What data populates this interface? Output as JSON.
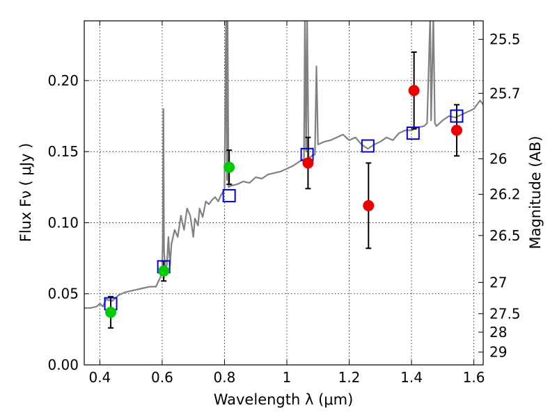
{
  "chart_data": {
    "type": "scatter",
    "xlabel": "Wavelength  λ (μm)",
    "ylabel": "Flux  Fν  ( μJy )",
    "ylabel_right": "Magnitude (AB)",
    "xlim": [
      0.35,
      1.63
    ],
    "ylim": [
      0.0,
      0.242
    ],
    "grid": true,
    "x_ticks": [
      0.4,
      0.6,
      0.8,
      1.0,
      1.2,
      1.4,
      1.6
    ],
    "x_tick_labels": [
      "0.4",
      "0.6",
      "0.8",
      "1",
      "1.2",
      "1.4",
      "1.6"
    ],
    "y_ticks": [
      0.0,
      0.05,
      0.1,
      0.15,
      0.2
    ],
    "y_tick_labels": [
      "0.00",
      "0.05",
      "0.10",
      "0.15",
      "0.20"
    ],
    "right_ticks": [
      {
        "label": "25.5",
        "flux": 0.229
      },
      {
        "label": "25.7",
        "flux": 0.191
      },
      {
        "label": "26",
        "flux": 0.145
      },
      {
        "label": "26.2",
        "flux": 0.12
      },
      {
        "label": "26.5",
        "flux": 0.091
      },
      {
        "label": "27",
        "flux": 0.058
      },
      {
        "label": "27.5",
        "flux": 0.036
      },
      {
        "label": "28",
        "flux": 0.023
      },
      {
        "label": "29",
        "flux": 0.009
      }
    ],
    "colors": {
      "spectrum": "#808080",
      "model_box": "#0000dd",
      "green": "#00cc00",
      "red": "#ee0000",
      "errorbar": "#000000"
    },
    "spectrum": [
      [
        0.35,
        0.04
      ],
      [
        0.37,
        0.04
      ],
      [
        0.39,
        0.041
      ],
      [
        0.4,
        0.043
      ],
      [
        0.41,
        0.041
      ],
      [
        0.42,
        0.046
      ],
      [
        0.44,
        0.045
      ],
      [
        0.46,
        0.049
      ],
      [
        0.48,
        0.051
      ],
      [
        0.5,
        0.052
      ],
      [
        0.52,
        0.053
      ],
      [
        0.54,
        0.054
      ],
      [
        0.56,
        0.055
      ],
      [
        0.58,
        0.055
      ],
      [
        0.595,
        0.062
      ],
      [
        0.6,
        0.068
      ],
      [
        0.602,
        0.09
      ],
      [
        0.604,
        0.18
      ],
      [
        0.606,
        0.08
      ],
      [
        0.61,
        0.068
      ],
      [
        0.615,
        0.07
      ],
      [
        0.62,
        0.09
      ],
      [
        0.625,
        0.07
      ],
      [
        0.63,
        0.085
      ],
      [
        0.64,
        0.095
      ],
      [
        0.65,
        0.09
      ],
      [
        0.66,
        0.105
      ],
      [
        0.67,
        0.095
      ],
      [
        0.68,
        0.11
      ],
      [
        0.69,
        0.105
      ],
      [
        0.7,
        0.09
      ],
      [
        0.705,
        0.103
      ],
      [
        0.715,
        0.098
      ],
      [
        0.72,
        0.11
      ],
      [
        0.73,
        0.104
      ],
      [
        0.74,
        0.115
      ],
      [
        0.75,
        0.113
      ],
      [
        0.76,
        0.116
      ],
      [
        0.77,
        0.118
      ],
      [
        0.78,
        0.115
      ],
      [
        0.79,
        0.12
      ],
      [
        0.8,
        0.123
      ],
      [
        0.805,
        0.245
      ],
      [
        0.808,
        0.13
      ],
      [
        0.81,
        0.245
      ],
      [
        0.813,
        0.125
      ],
      [
        0.82,
        0.126
      ],
      [
        0.84,
        0.127
      ],
      [
        0.86,
        0.129
      ],
      [
        0.88,
        0.128
      ],
      [
        0.9,
        0.132
      ],
      [
        0.92,
        0.131
      ],
      [
        0.94,
        0.134
      ],
      [
        0.96,
        0.135
      ],
      [
        0.98,
        0.136
      ],
      [
        1.0,
        0.138
      ],
      [
        1.02,
        0.14
      ],
      [
        1.04,
        0.143
      ],
      [
        1.055,
        0.145
      ],
      [
        1.058,
        0.245
      ],
      [
        1.062,
        0.15
      ],
      [
        1.065,
        0.245
      ],
      [
        1.07,
        0.145
      ],
      [
        1.08,
        0.147
      ],
      [
        1.09,
        0.148
      ],
      [
        1.095,
        0.21
      ],
      [
        1.1,
        0.155
      ],
      [
        1.12,
        0.157
      ],
      [
        1.14,
        0.158
      ],
      [
        1.16,
        0.16
      ],
      [
        1.18,
        0.162
      ],
      [
        1.2,
        0.158
      ],
      [
        1.22,
        0.16
      ],
      [
        1.24,
        0.155
      ],
      [
        1.26,
        0.152
      ],
      [
        1.28,
        0.155
      ],
      [
        1.3,
        0.157
      ],
      [
        1.32,
        0.16
      ],
      [
        1.34,
        0.158
      ],
      [
        1.36,
        0.163
      ],
      [
        1.38,
        0.165
      ],
      [
        1.4,
        0.165
      ],
      [
        1.42,
        0.167
      ],
      [
        1.44,
        0.168
      ],
      [
        1.45,
        0.17
      ],
      [
        1.46,
        0.245
      ],
      [
        1.463,
        0.172
      ],
      [
        1.47,
        0.245
      ],
      [
        1.475,
        0.17
      ],
      [
        1.48,
        0.168
      ],
      [
        1.5,
        0.172
      ],
      [
        1.52,
        0.175
      ],
      [
        1.54,
        0.174
      ],
      [
        1.56,
        0.176
      ],
      [
        1.58,
        0.178
      ],
      [
        1.6,
        0.18
      ],
      [
        1.62,
        0.186
      ],
      [
        1.63,
        0.183
      ]
    ],
    "model_points": [
      {
        "x": 0.435,
        "y": 0.043
      },
      {
        "x": 0.605,
        "y": 0.069
      },
      {
        "x": 0.815,
        "y": 0.119
      },
      {
        "x": 1.065,
        "y": 0.148
      },
      {
        "x": 1.26,
        "y": 0.154
      },
      {
        "x": 1.405,
        "y": 0.163
      },
      {
        "x": 1.545,
        "y": 0.175
      }
    ],
    "observed_green": [
      {
        "x": 0.435,
        "y": 0.037,
        "err": 0.011
      },
      {
        "x": 0.605,
        "y": 0.066,
        "err": 0.007
      },
      {
        "x": 0.815,
        "y": 0.139,
        "err": 0.012
      }
    ],
    "observed_red": [
      {
        "x": 1.068,
        "y": 0.142,
        "err": 0.018
      },
      {
        "x": 1.262,
        "y": 0.112,
        "err": 0.03
      },
      {
        "x": 1.408,
        "y": 0.193,
        "err": 0.027
      },
      {
        "x": 1.545,
        "y": 0.165,
        "err": 0.018
      }
    ]
  }
}
